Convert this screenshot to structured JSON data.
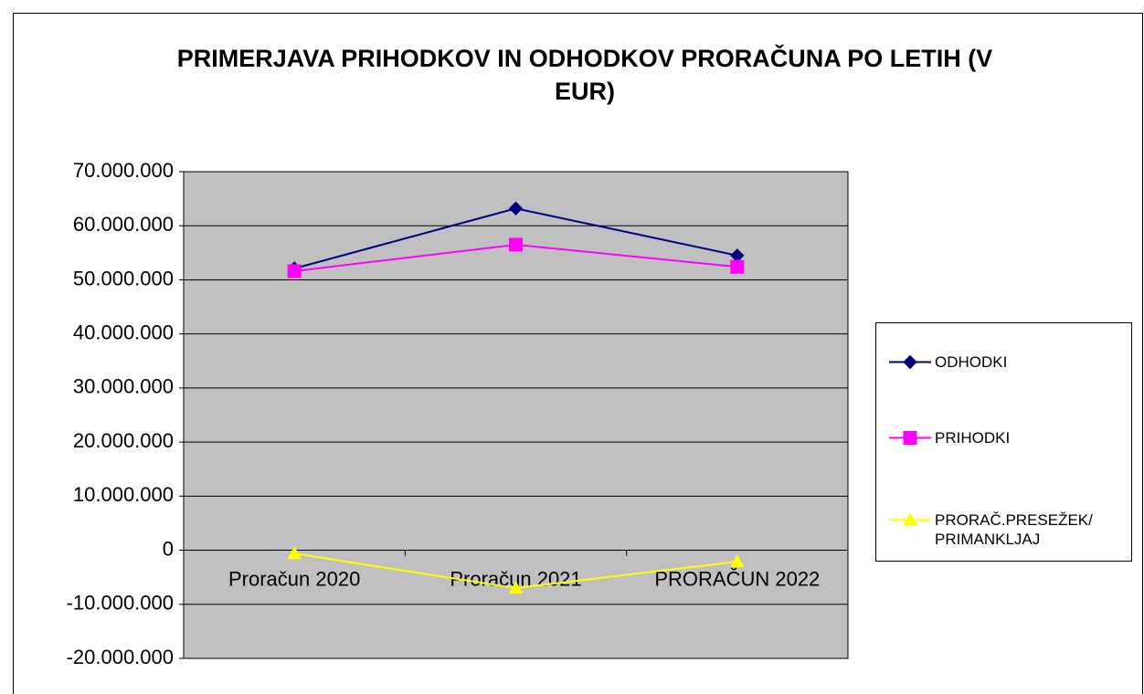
{
  "chart_data": {
    "type": "line",
    "title": "PRIMERJAVA PRIHODKOV IN ODHODKOV PRORAČUNA PO LETIH (V EUR)",
    "categories": [
      "Proračun 2020",
      "Proračun 2021",
      "PRORAČUN 2022"
    ],
    "series": [
      {
        "name": "ODHODKI",
        "color": "#000080",
        "marker": "diamond",
        "values": [
          52100000,
          63200000,
          54500000
        ]
      },
      {
        "name": "PRIHODKI",
        "color": "#ff00ff",
        "marker": "square",
        "values": [
          51600000,
          56500000,
          52400000
        ]
      },
      {
        "name": "PRORAČ.PRESEŽEK/ PRIMANKLJAJ",
        "color": "#ffff00",
        "marker": "triangle",
        "values": [
          -600000,
          -7000000,
          -2100000
        ]
      }
    ],
    "ylim": [
      -20000000,
      70000000
    ],
    "yticks": [
      {
        "value": -20000000,
        "label": "-20.000.000"
      },
      {
        "value": -10000000,
        "label": "-10.000.000"
      },
      0,
      {
        "value": 10000000,
        "label": "10.000.000"
      },
      {
        "value": 20000000,
        "label": "20.000.000"
      },
      {
        "value": 30000000,
        "label": "30.000.000"
      },
      {
        "value": 40000000,
        "label": "40.000.000"
      },
      {
        "value": 50000000,
        "label": "50.000.000"
      },
      {
        "value": 60000000,
        "label": "60.000.000"
      },
      {
        "value": 70000000,
        "label": "70.000.000"
      }
    ],
    "grid": true,
    "legend": "right"
  }
}
